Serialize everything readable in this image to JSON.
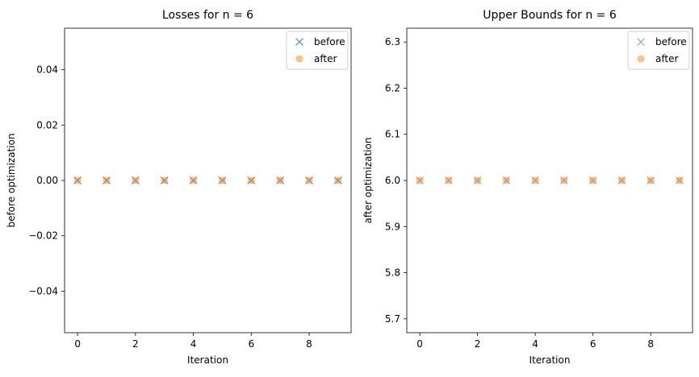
{
  "chart_data": [
    {
      "type": "scatter",
      "title": "Losses for n = 6",
      "xlabel": "Iteration",
      "ylabel": "before optimization",
      "xlim": [
        -0.45,
        9.45
      ],
      "ylim": [
        -0.055,
        0.055
      ],
      "xticks": [
        0,
        2,
        4,
        6,
        8
      ],
      "xtick_labels": [
        "0",
        "2",
        "4",
        "6",
        "8"
      ],
      "yticks": [
        -0.04,
        -0.02,
        0.0,
        0.02,
        0.04
      ],
      "ytick_labels": [
        "−0.04",
        "−0.02",
        "0.00",
        "0.02",
        "0.04"
      ],
      "grid": false,
      "legend_position": "upper right",
      "x": [
        0,
        1,
        2,
        3,
        4,
        5,
        6,
        7,
        8,
        9
      ],
      "series": [
        {
          "name": "before",
          "marker": "x",
          "color": "#1f77b4",
          "alpha": 0.7,
          "values": [
            0,
            0,
            0,
            0,
            0,
            0,
            0,
            0,
            0,
            0
          ]
        },
        {
          "name": "after",
          "marker": "o",
          "color": "#ff7f0e",
          "alpha": 0.5,
          "values": [
            0,
            0,
            0,
            0,
            0,
            0,
            0,
            0,
            0,
            0
          ]
        }
      ]
    },
    {
      "type": "scatter",
      "title": "Upper Bounds for n = 6",
      "xlabel": "Iteration",
      "ylabel": "after optimization",
      "xlim": [
        -0.45,
        9.45
      ],
      "ylim": [
        5.67,
        6.33
      ],
      "xticks": [
        0,
        2,
        4,
        6,
        8
      ],
      "xtick_labels": [
        "0",
        "2",
        "4",
        "6",
        "8"
      ],
      "yticks": [
        5.7,
        5.8,
        5.9,
        6.0,
        6.1,
        6.2,
        6.3
      ],
      "ytick_labels": [
        "5.7",
        "5.8",
        "5.9",
        "6.0",
        "6.1",
        "6.2",
        "6.3"
      ],
      "grid": false,
      "legend_position": "upper right",
      "x": [
        0,
        1,
        2,
        3,
        4,
        5,
        6,
        7,
        8,
        9
      ],
      "series": [
        {
          "name": "before",
          "marker": "x",
          "color": "#1f77b4",
          "alpha": 0.5,
          "values": [
            6,
            6,
            6,
            6,
            6,
            6,
            6,
            6,
            6,
            6
          ]
        },
        {
          "name": "after",
          "marker": "o",
          "color": "#ff7f0e",
          "alpha": 0.5,
          "values": [
            6,
            6,
            6,
            6,
            6,
            6,
            6,
            6,
            6,
            6
          ]
        }
      ]
    }
  ]
}
